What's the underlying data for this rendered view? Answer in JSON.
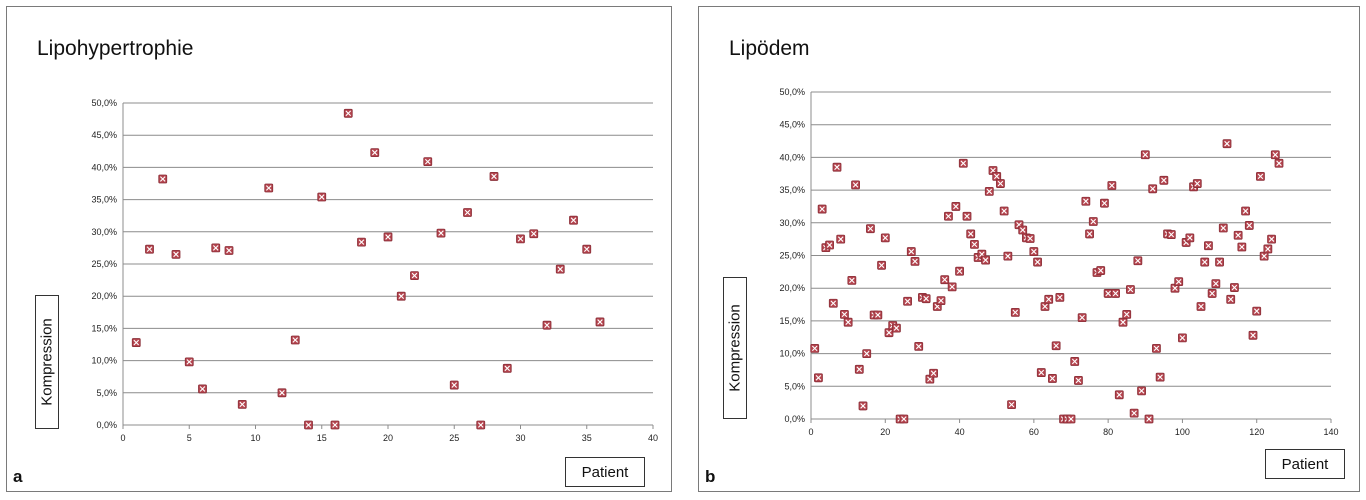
{
  "chart_data": [
    {
      "type": "scatter",
      "panel_label": "a",
      "title": "Lipohypertrophie",
      "xlabel": "Patient",
      "ylabel": "Kompression",
      "xlim": [
        0,
        40
      ],
      "ylim": [
        0,
        50
      ],
      "x_ticks": [
        0,
        5,
        10,
        15,
        20,
        25,
        30,
        35,
        40
      ],
      "x_tick_labels": [
        "0",
        "5",
        "10",
        "15",
        "20",
        "25",
        "30",
        "35",
        "40"
      ],
      "y_ticks": [
        0,
        5,
        10,
        15,
        20,
        25,
        30,
        35,
        40,
        45,
        50
      ],
      "y_tick_labels": [
        "0,0%",
        "5,0%",
        "10,0%",
        "15,0%",
        "20,0%",
        "25,0%",
        "30,0%",
        "35,0%",
        "40,0%",
        "45,0%",
        "50,0%"
      ],
      "grid": "horizontal",
      "marker_color": "#b5454f",
      "x": [
        1,
        2,
        3,
        4,
        5,
        6,
        7,
        8,
        9,
        11,
        12,
        13,
        14,
        15,
        16,
        17,
        18,
        19,
        20,
        21,
        22,
        23,
        24,
        25,
        26,
        27,
        28,
        29,
        30,
        31,
        32,
        33,
        34,
        35,
        36
      ],
      "y": [
        12.8,
        27.3,
        38.2,
        26.5,
        9.8,
        5.6,
        27.5,
        27.1,
        3.2,
        36.8,
        5.0,
        13.2,
        0.0,
        35.4,
        0.0,
        48.4,
        28.4,
        42.3,
        29.2,
        20.0,
        23.2,
        40.9,
        29.8,
        6.2,
        33.0,
        0.0,
        38.6,
        8.8,
        28.9,
        29.7,
        15.5,
        24.2,
        31.8,
        27.3,
        16.0
      ]
    },
    {
      "type": "scatter",
      "panel_label": "b",
      "title": "Lipödem",
      "xlabel": "Patient",
      "ylabel": "Kompression",
      "xlim": [
        0,
        140
      ],
      "ylim": [
        0,
        50
      ],
      "x_ticks": [
        0,
        20,
        40,
        60,
        80,
        100,
        120,
        140
      ],
      "x_tick_labels": [
        "0",
        "20",
        "40",
        "60",
        "80",
        "100",
        "120",
        "140"
      ],
      "y_ticks": [
        0,
        5,
        10,
        15,
        20,
        25,
        30,
        35,
        40,
        45,
        50
      ],
      "y_tick_labels": [
        "0,0%",
        "5,0%",
        "10,0%",
        "15,0%",
        "20,0%",
        "25,0%",
        "30,0%",
        "35,0%",
        "40,0%",
        "45,0%",
        "50,0%"
      ],
      "grid": "horizontal",
      "marker_color": "#b5454f",
      "x": [
        1,
        2,
        3,
        4,
        5,
        6,
        7,
        8,
        9,
        10,
        11,
        12,
        13,
        14,
        15,
        16,
        17,
        18,
        19,
        20,
        21,
        22,
        23,
        24,
        25,
        26,
        27,
        28,
        29,
        30,
        31,
        32,
        33,
        34,
        35,
        36,
        37,
        38,
        39,
        40,
        41,
        42,
        43,
        44,
        45,
        46,
        47,
        48,
        49,
        50,
        51,
        52,
        53,
        54,
        55,
        56,
        57,
        58,
        59,
        60,
        61,
        62,
        63,
        64,
        65,
        66,
        67,
        68,
        69,
        70,
        71,
        72,
        73,
        74,
        75,
        76,
        77,
        78,
        79,
        80,
        81,
        82,
        83,
        84,
        85,
        86,
        87,
        88,
        89,
        90,
        91,
        92,
        93,
        94,
        95,
        96,
        97,
        98,
        99,
        100,
        101,
        102,
        103,
        104,
        105,
        106,
        107,
        108,
        109,
        110,
        111,
        112,
        113,
        114,
        115,
        116,
        117,
        118,
        119,
        120,
        121,
        122,
        123,
        124,
        125,
        126
      ],
      "y": [
        10.8,
        6.3,
        32.1,
        26.2,
        26.6,
        17.7,
        38.5,
        27.5,
        16.0,
        14.8,
        21.2,
        35.8,
        7.6,
        2.0,
        10.0,
        29.1,
        15.9,
        15.9,
        23.5,
        27.7,
        13.2,
        14.3,
        13.9,
        0.0,
        0.0,
        18.0,
        25.6,
        24.1,
        11.1,
        18.6,
        18.4,
        6.1,
        7.0,
        17.2,
        18.1,
        21.3,
        31.0,
        20.2,
        32.5,
        22.6,
        39.1,
        31.0,
        28.3,
        26.7,
        24.7,
        25.2,
        24.3,
        34.8,
        38.0,
        37.1,
        36.0,
        31.8,
        24.9,
        2.2,
        16.3,
        29.7,
        28.9,
        27.7,
        27.6,
        25.6,
        24.0,
        7.1,
        17.2,
        18.3,
        6.2,
        11.2,
        18.6,
        0.0,
        0.0,
        0.0,
        8.8,
        5.9,
        15.5,
        33.3,
        28.3,
        30.2,
        22.4,
        22.7,
        33.0,
        19.2,
        35.7,
        19.2,
        3.7,
        14.8,
        16.0,
        19.8,
        0.9,
        24.2,
        4.3,
        40.4,
        0.0,
        35.2,
        10.8,
        6.4,
        36.5,
        28.3,
        28.2,
        20.0,
        21.0,
        12.4,
        27.0,
        27.7,
        35.5,
        36.0,
        17.2,
        24.0,
        26.5,
        19.2,
        20.7,
        24.0,
        29.2,
        42.1,
        18.3,
        20.1,
        28.1,
        26.3,
        31.8,
        29.6,
        12.8,
        16.5,
        37.1,
        24.9,
        26.0,
        27.5,
        40.4,
        39.1
      ]
    }
  ]
}
